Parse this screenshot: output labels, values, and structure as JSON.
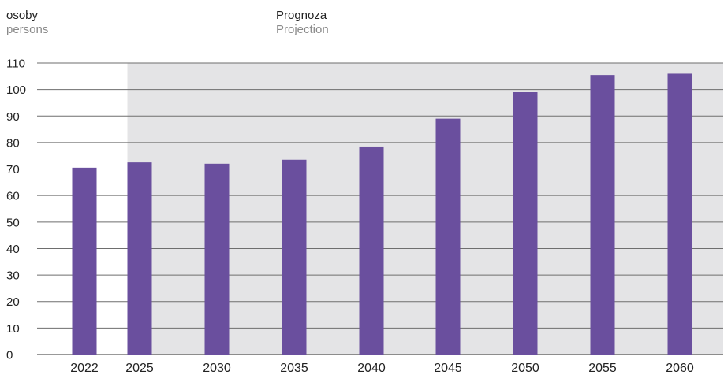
{
  "header": {
    "unit_pl": "osoby",
    "unit_en": "persons",
    "projection_pl": "Prognoza",
    "projection_en": "Projection"
  },
  "chart_data": {
    "type": "bar",
    "categories": [
      "2022",
      "2025",
      "2030",
      "2035",
      "2040",
      "2045",
      "2050",
      "2055",
      "2060"
    ],
    "values": [
      70.5,
      72.5,
      72,
      73.5,
      78.5,
      89,
      99,
      105.5,
      106
    ],
    "ylim": [
      0,
      110
    ],
    "yticks": [
      0,
      10,
      20,
      30,
      40,
      50,
      60,
      70,
      80,
      90,
      100,
      110
    ],
    "grid": true,
    "bar_color": "#6a4f9e",
    "projection_shade_color": "#e4e4e6",
    "projection_start_category": "2025"
  }
}
